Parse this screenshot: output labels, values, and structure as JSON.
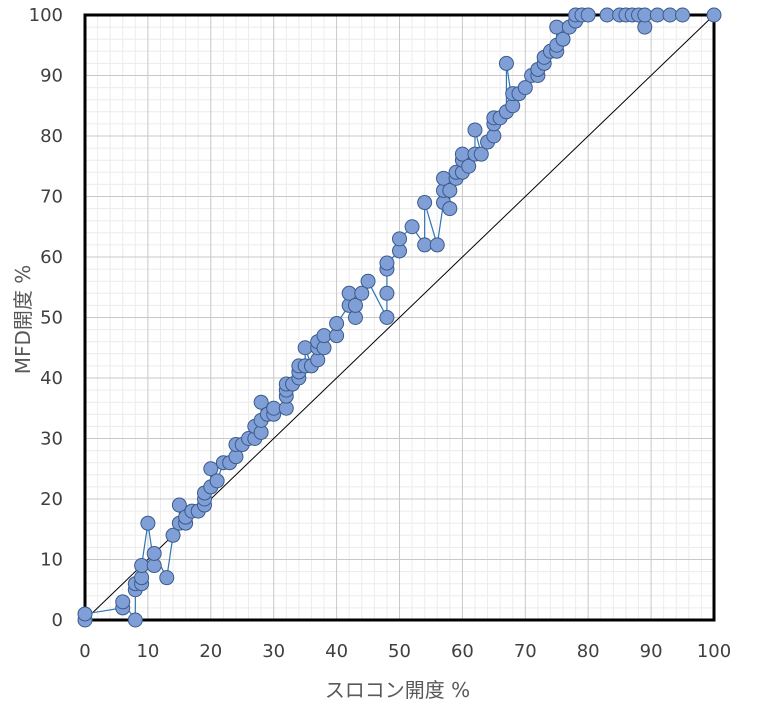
{
  "chart_data": {
    "type": "scatter",
    "xlabel": "スロコン開度 %",
    "ylabel": "MFD開度 %",
    "xlim": [
      0,
      100
    ],
    "ylim": [
      0,
      100
    ],
    "x_ticks": [
      "0",
      "10",
      "20",
      "30",
      "40",
      "50",
      "60",
      "70",
      "80",
      "90",
      "100"
    ],
    "y_ticks": [
      "0",
      "10",
      "20",
      "30",
      "40",
      "50",
      "60",
      "70",
      "80",
      "90",
      "100"
    ],
    "grid": true,
    "minor_grid": true,
    "reference_line": {
      "from": [
        0,
        0
      ],
      "to": [
        100,
        100
      ]
    },
    "colors": {
      "marker_fill": "#7f9fd6",
      "marker_edge": "#3b5a8c",
      "series_line": "#2e75b6",
      "reference_line": "#000000",
      "grid_major": "#c8c8c8",
      "grid_minor": "#ececec"
    },
    "series": [
      {
        "points": [
          [
            0,
            0
          ],
          [
            0,
            1
          ],
          [
            6,
            2
          ],
          [
            6,
            3
          ],
          [
            8,
            0
          ],
          [
            8,
            5
          ],
          [
            8,
            6
          ],
          [
            9,
            6
          ],
          [
            9,
            7
          ],
          [
            9,
            9
          ],
          [
            10,
            16
          ],
          [
            11,
            9
          ],
          [
            11,
            11
          ],
          [
            13,
            7
          ],
          [
            14,
            14
          ],
          [
            15,
            16
          ],
          [
            15,
            19
          ],
          [
            16,
            16
          ],
          [
            16,
            17
          ],
          [
            17,
            18
          ],
          [
            18,
            18
          ],
          [
            19,
            19
          ],
          [
            19,
            20
          ],
          [
            19,
            21
          ],
          [
            20,
            22
          ],
          [
            20,
            25
          ],
          [
            21,
            23
          ],
          [
            22,
            26
          ],
          [
            23,
            26
          ],
          [
            24,
            27
          ],
          [
            24,
            29
          ],
          [
            25,
            29
          ],
          [
            26,
            30
          ],
          [
            27,
            30
          ],
          [
            27,
            32
          ],
          [
            28,
            31
          ],
          [
            28,
            33
          ],
          [
            28,
            36
          ],
          [
            29,
            34
          ],
          [
            30,
            34
          ],
          [
            30,
            35
          ],
          [
            32,
            35
          ],
          [
            32,
            37
          ],
          [
            32,
            38
          ],
          [
            32,
            39
          ],
          [
            33,
            39
          ],
          [
            34,
            40
          ],
          [
            34,
            41
          ],
          [
            34,
            42
          ],
          [
            35,
            42
          ],
          [
            35,
            45
          ],
          [
            36,
            42
          ],
          [
            37,
            43
          ],
          [
            37,
            45
          ],
          [
            37,
            46
          ],
          [
            38,
            45
          ],
          [
            38,
            47
          ],
          [
            40,
            47
          ],
          [
            40,
            49
          ],
          [
            42,
            52
          ],
          [
            42,
            54
          ],
          [
            43,
            50
          ],
          [
            43,
            52
          ],
          [
            44,
            54
          ],
          [
            45,
            56
          ],
          [
            48,
            50
          ],
          [
            48,
            54
          ],
          [
            48,
            58
          ],
          [
            48,
            59
          ],
          [
            50,
            61
          ],
          [
            50,
            63
          ],
          [
            52,
            65
          ],
          [
            54,
            62
          ],
          [
            54,
            69
          ],
          [
            56,
            62
          ],
          [
            57,
            69
          ],
          [
            57,
            71
          ],
          [
            57,
            73
          ],
          [
            58,
            68
          ],
          [
            58,
            71
          ],
          [
            59,
            73
          ],
          [
            59,
            74
          ],
          [
            60,
            74
          ],
          [
            60,
            76
          ],
          [
            60,
            77
          ],
          [
            61,
            75
          ],
          [
            62,
            77
          ],
          [
            62,
            81
          ],
          [
            63,
            77
          ],
          [
            64,
            79
          ],
          [
            65,
            80
          ],
          [
            65,
            82
          ],
          [
            65,
            83
          ],
          [
            66,
            83
          ],
          [
            67,
            84
          ],
          [
            67,
            92
          ],
          [
            68,
            85
          ],
          [
            68,
            87
          ],
          [
            69,
            87
          ],
          [
            70,
            88
          ],
          [
            71,
            90
          ],
          [
            72,
            90
          ],
          [
            72,
            91
          ],
          [
            73,
            92
          ],
          [
            73,
            93
          ],
          [
            74,
            94
          ],
          [
            75,
            94
          ],
          [
            75,
            95
          ],
          [
            75,
            98
          ],
          [
            76,
            96
          ],
          [
            77,
            98
          ],
          [
            78,
            99
          ],
          [
            78,
            100
          ],
          [
            79,
            100
          ],
          [
            80,
            100
          ],
          [
            83,
            100
          ],
          [
            85,
            100
          ],
          [
            86,
            100
          ],
          [
            87,
            100
          ],
          [
            88,
            100
          ],
          [
            89,
            98
          ],
          [
            89,
            100
          ],
          [
            91,
            100
          ],
          [
            93,
            100
          ],
          [
            95,
            100
          ],
          [
            100,
            100
          ]
        ]
      }
    ]
  }
}
